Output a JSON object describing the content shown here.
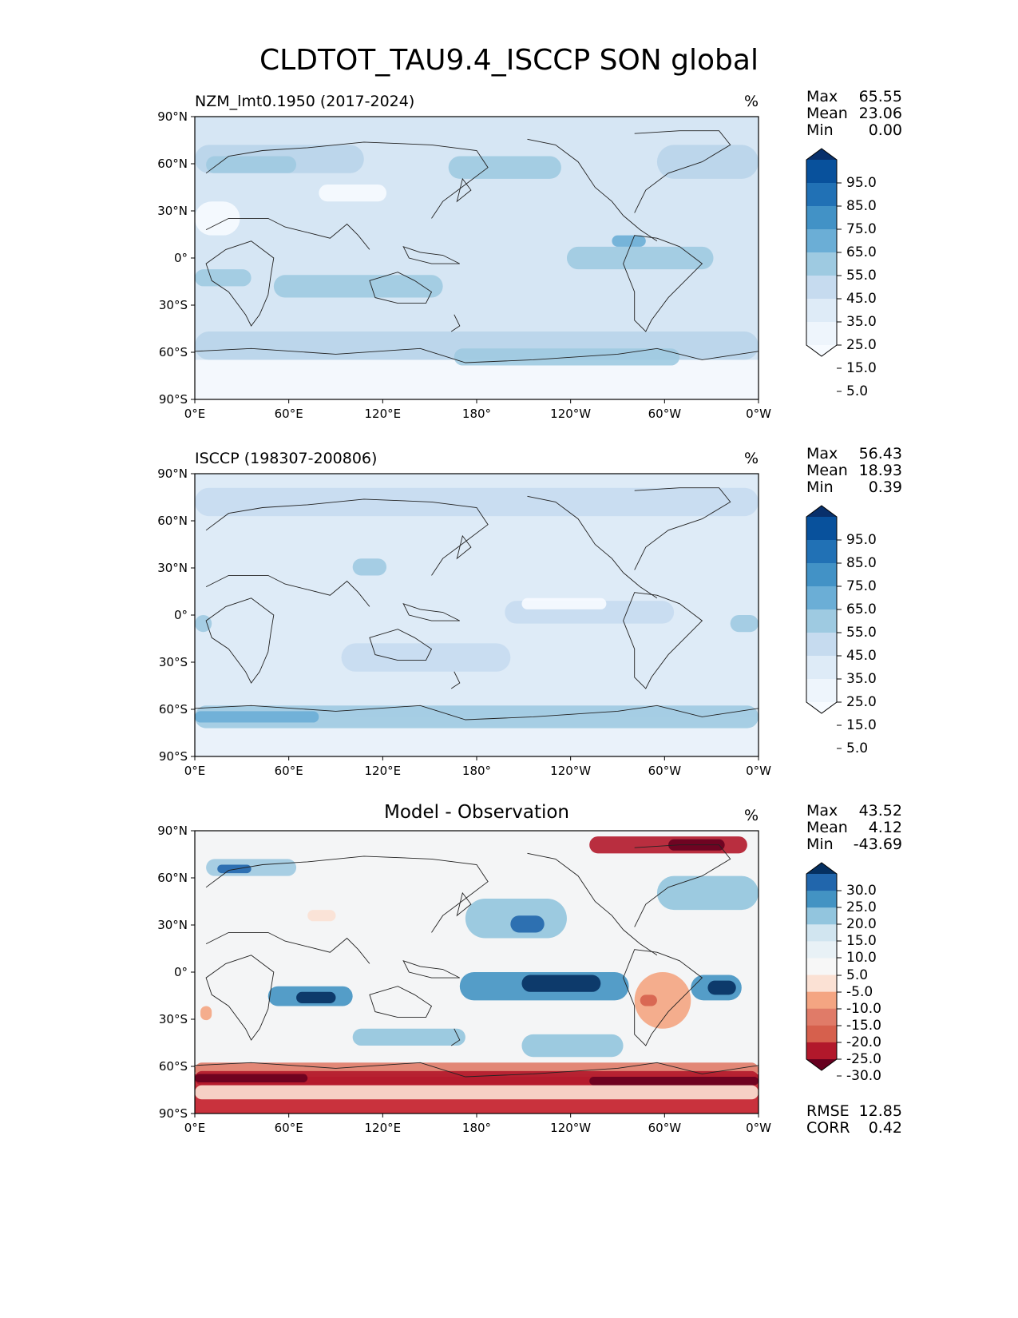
{
  "title": "CLDTOT_TAU9.4_ISCCP SON global",
  "lat_ticks": [
    "90°N",
    "60°N",
    "30°N",
    "0°",
    "30°S",
    "60°S",
    "90°S"
  ],
  "lon_ticks": [
    "0°E",
    "60°E",
    "120°E",
    "180°",
    "120°W",
    "60°W",
    "0°W"
  ],
  "stat_labels": {
    "max": "Max",
    "mean": "Mean",
    "min": "Min",
    "rmse": "RMSE",
    "corr": "CORR"
  },
  "panels": [
    {
      "left_title": "NZM_lmt0.1950 (2017-2024)",
      "center_title": "",
      "units": "%",
      "stats": {
        "max": "65.55",
        "mean": "23.06",
        "min": "0.00"
      },
      "colorbar": {
        "labels": [
          "95.0",
          "85.0",
          "75.0",
          "65.0",
          "55.0",
          "45.0",
          "35.0",
          "25.0",
          "15.0",
          "5.0"
        ],
        "colors": [
          "#08306b",
          "#08519c",
          "#2171b5",
          "#4292c6",
          "#6baed6",
          "#9ecae1",
          "#c6dbef",
          "#deebf7",
          "#eef5fc",
          "#f7fbff"
        ]
      },
      "map": {
        "base_color": "#d6e6f4",
        "land_color": "#e8f1fa",
        "polar_south_color": "#f4f8fd"
      }
    },
    {
      "left_title": "ISCCP (198307-200806)",
      "center_title": "",
      "units": "%",
      "stats": {
        "max": "56.43",
        "mean": "18.93",
        "min": "0.39"
      },
      "colorbar": {
        "labels": [
          "95.0",
          "85.0",
          "75.0",
          "65.0",
          "55.0",
          "45.0",
          "35.0",
          "25.0",
          "15.0",
          "5.0"
        ],
        "colors": [
          "#08306b",
          "#08519c",
          "#2171b5",
          "#4292c6",
          "#6baed6",
          "#9ecae1",
          "#c6dbef",
          "#deebf7",
          "#eef5fc",
          "#f7fbff"
        ]
      },
      "map": {
        "base_color": "#deebf7",
        "land_color": "#e6f0f9",
        "polar_south_color": "#eaf2fa"
      }
    },
    {
      "left_title": "",
      "center_title": "Model - Observation",
      "units": "%",
      "stats": {
        "max": "43.52",
        "mean": "4.12",
        "min": "-43.69",
        "rmse": "12.85",
        "corr": "0.42"
      },
      "colorbar": {
        "labels": [
          "30.0",
          "25.0",
          "20.0",
          "15.0",
          "10.0",
          "5.0",
          "-5.0",
          "-10.0",
          "-15.0",
          "-20.0",
          "-25.0",
          "-30.0"
        ],
        "colors": [
          "#053061",
          "#2166ac",
          "#4393c3",
          "#92c5de",
          "#d1e5f0",
          "#e8f1f6",
          "#f7f7f7",
          "#fbe1d4",
          "#f4a582",
          "#e07b68",
          "#d6604d",
          "#b2182b",
          "#67001f"
        ]
      },
      "map": {
        "base_color": "#f4f5f6",
        "land_color": "#f4f4f4",
        "polar_south_color": "#c9323d"
      }
    }
  ]
}
